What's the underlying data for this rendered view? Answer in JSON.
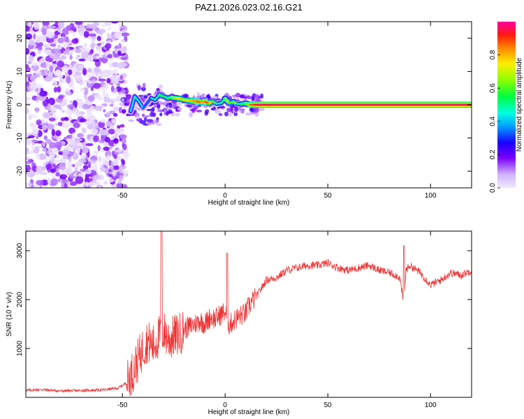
{
  "chart_data": [
    {
      "type": "heatmap",
      "title": "PAZ1.2026.023.02.16.G21",
      "xlabel": "Height of straight line (km)",
      "ylabel": "Frequency (Hz)",
      "xlim": [
        -97,
        120
      ],
      "ylim": [
        -25,
        25
      ],
      "xticks": [
        -50,
        0,
        50,
        100
      ],
      "yticks": [
        -20,
        -10,
        0,
        10,
        20
      ],
      "xtick_labels": [
        "-50",
        "0",
        "50",
        "100"
      ],
      "ytick_labels": [
        "-20",
        "-10",
        "0",
        "10",
        "20"
      ],
      "colorbar": {
        "label": "Normalized spectral amplitude",
        "range": [
          0,
          1
        ],
        "ticks": [
          0,
          0.2,
          0.4,
          0.6,
          0.8
        ],
        "tick_labels": [
          "0.0",
          "0.2",
          "0.4",
          "0.6",
          "0.8"
        ]
      },
      "ridge": {
        "description": "frequency track of peak amplitude",
        "x": [
          -46,
          -44,
          -42,
          -40,
          -38,
          -36,
          -34,
          -32,
          -30,
          -28,
          -26,
          -24,
          -22,
          -20,
          -18,
          -16,
          -14,
          -12,
          -10,
          -8,
          -6,
          -4,
          -2,
          0,
          2,
          4,
          6,
          8,
          10,
          12,
          14,
          16,
          120
        ],
        "y": [
          -2,
          2.5,
          1,
          -1,
          0.5,
          2,
          1.5,
          3,
          2.5,
          2,
          2.2,
          2,
          1.8,
          1.5,
          1.3,
          1.2,
          1,
          0.8,
          0.9,
          0.5,
          1,
          0.3,
          0.5,
          1.8,
          0.5,
          0.8,
          0.3,
          0.2,
          0.4,
          0,
          0,
          0,
          0
        ],
        "amplitude": [
          0.45,
          0.5,
          0.45,
          0.35,
          0.35,
          0.5,
          0.5,
          0.6,
          0.55,
          0.6,
          0.7,
          0.75,
          0.8,
          0.75,
          0.8,
          0.85,
          0.9,
          0.85,
          0.9,
          0.8,
          0.6,
          0.5,
          0.55,
          0.7,
          0.6,
          0.65,
          0.55,
          0.6,
          0.7,
          0.9,
          0.95,
          0.98,
          1.0
        ]
      },
      "noise_region": {
        "x_range": [
          -97,
          -48
        ],
        "amplitude_range": [
          0,
          0.2
        ]
      }
    },
    {
      "type": "line",
      "title": "",
      "xlabel": "Height of straight line (km)",
      "ylabel": "SNR (10 * v/v)",
      "xlim": [
        -97,
        120
      ],
      "ylim": [
        0,
        3400
      ],
      "xticks": [
        -50,
        0,
        50,
        100
      ],
      "yticks": [
        1000,
        2000,
        3000
      ],
      "xtick_labels": [
        "-50",
        "0",
        "50",
        "100"
      ],
      "ytick_labels": [
        "1000",
        "2000",
        "3000"
      ],
      "series": [
        {
          "name": "SNR",
          "color": "#ee3333",
          "x": [
            -97,
            -90,
            -80,
            -70,
            -60,
            -52,
            -48,
            -45,
            -42,
            -40,
            -38,
            -35,
            -32,
            -30,
            -27,
            -25,
            -22,
            -20,
            -17,
            -15,
            -12,
            -10,
            -7,
            -5,
            -2,
            0,
            2,
            5,
            8,
            10,
            12,
            15,
            18,
            20,
            25,
            30,
            35,
            40,
            45,
            50,
            55,
            60,
            65,
            70,
            75,
            80,
            83,
            85,
            87,
            88,
            90,
            95,
            100,
            105,
            110,
            115,
            120
          ],
          "y": [
            140,
            160,
            130,
            140,
            150,
            190,
            300,
            520,
            800,
            1000,
            1150,
            1050,
            1250,
            1350,
            1180,
            1250,
            1300,
            1400,
            1450,
            1500,
            1570,
            1500,
            1650,
            1600,
            1700,
            1750,
            1480,
            1600,
            1680,
            1720,
            1900,
            2050,
            2250,
            2400,
            2450,
            2600,
            2650,
            2700,
            2700,
            2750,
            2650,
            2600,
            2650,
            2700,
            2600,
            2550,
            2500,
            2450,
            1900,
            2600,
            2700,
            2550,
            2300,
            2400,
            2550,
            2500,
            2600
          ]
        }
      ]
    }
  ]
}
